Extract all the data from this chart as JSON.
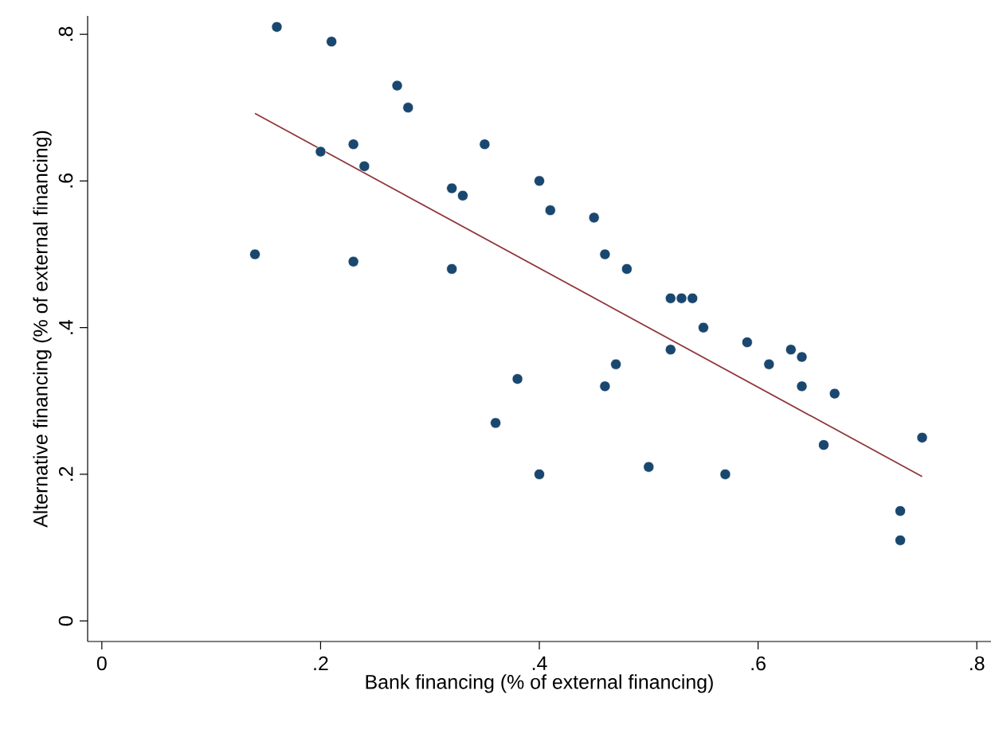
{
  "chart_data": {
    "type": "scatter",
    "xlabel": "Bank financing (% of external financing)",
    "ylabel": "Alternative financing (% of external financing)",
    "xlim": [
      -0.013,
      0.813
    ],
    "ylim": [
      -0.028,
      0.825
    ],
    "xticks": [
      {
        "value": 0,
        "label": "0"
      },
      {
        "value": 0.2,
        "label": ".2"
      },
      {
        "value": 0.4,
        "label": ".4"
      },
      {
        "value": 0.6,
        "label": ".6"
      },
      {
        "value": 0.8,
        "label": ".8"
      }
    ],
    "yticks": [
      {
        "value": 0,
        "label": "0"
      },
      {
        "value": 0.2,
        "label": ".2"
      },
      {
        "value": 0.4,
        "label": ".4"
      },
      {
        "value": 0.6,
        "label": ".6"
      },
      {
        "value": 0.8,
        "label": ".8"
      }
    ],
    "grid": false,
    "marker": "circle",
    "series": [
      {
        "color": "#1a476f",
        "x": [
          0.16,
          0.21,
          0.27,
          0.28,
          0.23,
          0.2,
          0.24,
          0.35,
          0.4,
          0.32,
          0.33,
          0.41,
          0.45,
          0.46,
          0.14,
          0.23,
          0.32,
          0.48,
          0.52,
          0.53,
          0.54,
          0.55,
          0.59,
          0.52,
          0.63,
          0.64,
          0.61,
          0.47,
          0.38,
          0.46,
          0.64,
          0.67,
          0.36,
          0.75,
          0.66,
          0.5,
          0.4,
          0.57,
          0.73,
          0.73
        ],
        "values": [
          0.81,
          0.79,
          0.73,
          0.7,
          0.65,
          0.64,
          0.62,
          0.65,
          0.6,
          0.59,
          0.58,
          0.56,
          0.55,
          0.5,
          0.5,
          0.49,
          0.48,
          0.48,
          0.44,
          0.44,
          0.44,
          0.4,
          0.38,
          0.37,
          0.37,
          0.36,
          0.35,
          0.35,
          0.33,
          0.32,
          0.32,
          0.31,
          0.27,
          0.25,
          0.24,
          0.21,
          0.2,
          0.2,
          0.15,
          0.11
        ]
      },
      {
        "type": "line",
        "marker": "none",
        "color": "#90353b",
        "x": [
          0.14,
          0.75
        ],
        "values": [
          0.692,
          0.197
        ]
      }
    ]
  }
}
